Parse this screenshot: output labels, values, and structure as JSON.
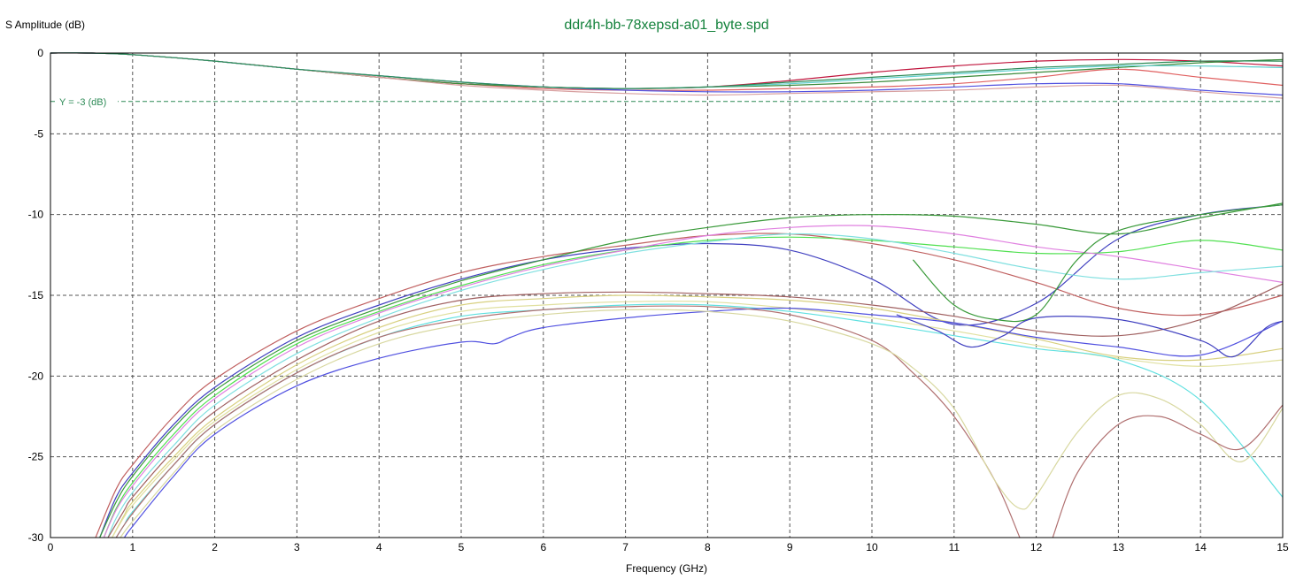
{
  "chart_data": {
    "type": "line",
    "title": "ddr4h-bb-78xepsd-a01_byte.spd",
    "xlabel": "Frequency (GHz)",
    "ylabel": "S Amplitude (dB)",
    "xlim": [
      0,
      15
    ],
    "ylim": [
      -30,
      0
    ],
    "xticks": [
      0,
      1,
      2,
      3,
      4,
      5,
      6,
      7,
      8,
      9,
      10,
      11,
      12,
      13,
      14,
      15
    ],
    "yticks": [
      0,
      -5,
      -10,
      -15,
      -20,
      -25,
      -30
    ],
    "grid": true,
    "reference_line": {
      "y": -3,
      "label": "Y = -3 (dB)",
      "color": "#2e8b57"
    },
    "series": [
      {
        "color": "#c0143c",
        "x": [
          0,
          0.5,
          1,
          2,
          3,
          4,
          5,
          6,
          7,
          8,
          9,
          10,
          11,
          12,
          13,
          14,
          15
        ],
        "y": [
          0,
          0,
          -0.1,
          -0.5,
          -1,
          -1.5,
          -1.9,
          -2.1,
          -2.2,
          -2.1,
          -1.7,
          -1.2,
          -0.8,
          -0.5,
          -0.4,
          -0.5,
          -0.8
        ]
      },
      {
        "color": "#e06060",
        "x": [
          0,
          0.5,
          1,
          2,
          3,
          4,
          5,
          6,
          7,
          8,
          9,
          10,
          11,
          12,
          13,
          14,
          15
        ],
        "y": [
          0,
          0,
          -0.1,
          -0.5,
          -1,
          -1.5,
          -1.9,
          -2.2,
          -2.3,
          -2.3,
          -2.2,
          -2.1,
          -1.9,
          -1.5,
          -1.0,
          -1.5,
          -2.0
        ]
      },
      {
        "color": "#3a8a3a",
        "x": [
          0,
          0.5,
          1,
          2,
          3,
          4,
          5,
          6,
          7,
          8,
          9,
          10,
          11,
          12,
          13,
          14,
          15
        ],
        "y": [
          0,
          0,
          -0.1,
          -0.5,
          -1,
          -1.5,
          -1.9,
          -2.1,
          -2.2,
          -2.1,
          -2.0,
          -1.8,
          -1.5,
          -1.2,
          -0.9,
          -0.6,
          -0.4
        ]
      },
      {
        "color": "#5050e0",
        "x": [
          0,
          0.5,
          1,
          2,
          3,
          4,
          5,
          6,
          7,
          8,
          9,
          10,
          11,
          12,
          13,
          14,
          15
        ],
        "y": [
          0,
          0,
          -0.1,
          -0.5,
          -1,
          -1.4,
          -1.8,
          -2.1,
          -2.3,
          -2.4,
          -2.4,
          -2.3,
          -2.1,
          -1.9,
          -1.9,
          -2.3,
          -2.6
        ]
      },
      {
        "color": "#d8a0a0",
        "x": [
          0,
          0.5,
          1,
          2,
          3,
          4,
          5,
          6,
          7,
          8,
          9,
          10,
          11,
          12,
          13,
          14,
          15
        ],
        "y": [
          0,
          0,
          -0.1,
          -0.5,
          -1,
          -1.5,
          -2.0,
          -2.3,
          -2.5,
          -2.6,
          -2.5,
          -2.4,
          -2.3,
          -2.1,
          -2.0,
          -2.4,
          -2.8
        ]
      },
      {
        "color": "#60d0d0",
        "x": [
          0,
          0.5,
          1,
          2,
          3,
          4,
          5,
          6,
          7,
          8,
          9,
          10,
          11,
          12,
          13,
          14,
          15
        ],
        "y": [
          0,
          0,
          -0.1,
          -0.5,
          -1,
          -1.4,
          -1.8,
          -2.1,
          -2.2,
          -2.1,
          -1.9,
          -1.6,
          -1.3,
          -1.0,
          -0.8,
          -0.8,
          -0.9
        ]
      },
      {
        "color": "#2e8b57",
        "x": [
          0,
          0.5,
          1,
          2,
          3,
          4,
          5,
          6,
          7,
          8,
          9,
          10,
          11,
          12,
          13,
          14,
          15
        ],
        "y": [
          0,
          0,
          -0.1,
          -0.5,
          -1,
          -1.4,
          -1.8,
          -2.1,
          -2.2,
          -2.1,
          -1.8,
          -1.5,
          -1.2,
          -0.9,
          -0.7,
          -0.5,
          -0.5
        ]
      },
      {
        "color": "#c06060",
        "x": [
          0.55,
          0.8,
          1,
          1.5,
          2,
          3,
          4,
          5,
          6,
          7,
          8,
          9,
          10,
          11,
          12,
          13,
          14,
          15
        ],
        "y": [
          -30,
          -27,
          -25.5,
          -22.5,
          -20.2,
          -17.2,
          -15.2,
          -13.6,
          -12.6,
          -11.9,
          -11.3,
          -11.2,
          -11.8,
          -12.8,
          -14.2,
          -15.8,
          -16.2,
          -15.0
        ]
      },
      {
        "color": "#4040c0",
        "x": [
          0.6,
          0.8,
          1,
          1.5,
          2,
          3,
          4,
          5,
          6,
          7,
          8,
          9,
          10,
          11,
          12,
          13,
          14,
          15
        ],
        "y": [
          -30,
          -27.5,
          -26,
          -23,
          -20.7,
          -17.6,
          -15.6,
          -14.0,
          -12.8,
          -12.1,
          -11.8,
          -12.2,
          -14.0,
          -16.8,
          -15.5,
          -11.5,
          -10.0,
          -9.4
        ]
      },
      {
        "color": "#3a9a3a",
        "x": [
          0.6,
          0.8,
          1,
          1.5,
          2,
          3,
          4,
          5,
          6,
          7,
          8,
          9,
          10,
          11,
          12,
          13,
          14,
          15
        ],
        "y": [
          -30,
          -27.8,
          -26.2,
          -23.2,
          -20.9,
          -17.8,
          -15.8,
          -14.1,
          -12.8,
          -11.6,
          -10.8,
          -10.2,
          -10.0,
          -10.1,
          -10.6,
          -11.2,
          -10.2,
          -9.3
        ]
      },
      {
        "color": "#50e050",
        "x": [
          0.65,
          0.8,
          1,
          1.5,
          2,
          3,
          4,
          5,
          6,
          7,
          8,
          9,
          10,
          11,
          12,
          13,
          14,
          15
        ],
        "y": [
          -30,
          -28.2,
          -26.6,
          -23.6,
          -21.2,
          -18.0,
          -16.0,
          -14.4,
          -13.1,
          -12.2,
          -11.6,
          -11.4,
          -11.6,
          -12.0,
          -12.4,
          -12.3,
          -11.6,
          -12.2
        ]
      },
      {
        "color": "#e080e0",
        "x": [
          0.65,
          0.8,
          1,
          1.5,
          2,
          3,
          4,
          5,
          6,
          7,
          8,
          9,
          10,
          11,
          12,
          13,
          14,
          15
        ],
        "y": [
          -30,
          -28.3,
          -26.8,
          -23.8,
          -21.4,
          -18.2,
          -16.1,
          -14.5,
          -13.2,
          -12.2,
          -11.3,
          -10.8,
          -10.7,
          -11.2,
          -12.0,
          -12.6,
          -13.4,
          -14.2
        ]
      },
      {
        "color": "#80e0e0",
        "x": [
          0.7,
          0.8,
          1,
          1.5,
          2,
          3,
          4,
          5,
          6,
          7,
          8,
          9,
          10,
          11,
          12,
          13,
          14,
          15
        ],
        "y": [
          -30,
          -28.8,
          -27.2,
          -24.3,
          -21.8,
          -18.6,
          -16.4,
          -14.7,
          -13.4,
          -12.4,
          -11.7,
          -11.2,
          -11.5,
          -12.4,
          -13.4,
          -14.0,
          -13.6,
          -13.2
        ]
      },
      {
        "color": "#a06060",
        "x": [
          0.7,
          0.9,
          1,
          1.5,
          2,
          3,
          4,
          5,
          6,
          7,
          8,
          9,
          10,
          11,
          12,
          13,
          14,
          15
        ],
        "y": [
          -30,
          -28.3,
          -27.5,
          -24.6,
          -22.2,
          -19.0,
          -16.6,
          -15.3,
          -14.9,
          -14.8,
          -14.9,
          -15.1,
          -15.6,
          -16.3,
          -17.2,
          -17.5,
          -16.5,
          -14.3
        ]
      },
      {
        "color": "#d8d080",
        "x": [
          0.75,
          0.9,
          1,
          1.5,
          2,
          3,
          4,
          5,
          6,
          7,
          8,
          9,
          10,
          11,
          12,
          13,
          14,
          15
        ],
        "y": [
          -30,
          -28.6,
          -27.8,
          -25.0,
          -22.6,
          -19.3,
          -17.0,
          -15.6,
          -15.2,
          -15.0,
          -15.1,
          -15.3,
          -15.8,
          -16.7,
          -17.7,
          -18.8,
          -19.0,
          -18.3
        ]
      },
      {
        "color": "#e0e0a0",
        "x": [
          0.75,
          0.9,
          1,
          1.5,
          2,
          3,
          4,
          5,
          6,
          7,
          8,
          9,
          10,
          11,
          12,
          13,
          14,
          15
        ],
        "y": [
          -30,
          -28.7,
          -28.0,
          -25.2,
          -22.8,
          -19.6,
          -17.3,
          -16.0,
          -15.6,
          -15.4,
          -15.4,
          -15.8,
          -16.4,
          -17.2,
          -18.1,
          -18.9,
          -19.4,
          -19.0
        ]
      },
      {
        "color": "#60e0e0",
        "x": [
          0.8,
          0.9,
          1,
          1.5,
          2,
          3,
          4,
          5,
          6,
          7,
          8,
          9,
          10,
          11,
          12,
          13,
          14,
          15
        ],
        "y": [
          -30,
          -29.2,
          -28.4,
          -25.5,
          -23.0,
          -19.8,
          -17.6,
          -16.3,
          -15.9,
          -15.6,
          -15.6,
          -16.0,
          -16.7,
          -17.5,
          -18.3,
          -19.0,
          -21.5,
          -27.5
        ]
      },
      {
        "color": "#5050e0",
        "x": [
          0.9,
          1,
          1.5,
          2,
          3,
          4,
          5,
          5.4,
          5.6,
          6,
          7,
          8,
          9,
          10,
          11,
          12,
          13,
          14,
          15
        ],
        "y": [
          -30,
          -29.3,
          -26.2,
          -23.6,
          -20.6,
          -18.9,
          -17.9,
          -18.0,
          -17.6,
          -17.0,
          -16.4,
          -16.0,
          -15.8,
          -16.2,
          -16.7,
          -17.6,
          -18.2,
          -18.7,
          -16.6
        ]
      },
      {
        "color": "#b07070",
        "x": [
          0.8,
          1,
          1.5,
          2,
          3,
          4,
          5,
          6,
          7,
          8,
          9,
          10,
          10.5,
          11,
          11.5,
          11.8
        ],
        "y": [
          -30,
          -28.5,
          -25.5,
          -23.0,
          -19.8,
          -17.6,
          -16.5,
          -15.9,
          -15.7,
          -15.7,
          -16.2,
          -17.8,
          -19.8,
          -22.5,
          -26.5,
          -30
        ]
      },
      {
        "color": "#d8d8a0",
        "x": [
          0.85,
          1,
          1.5,
          2,
          3,
          4,
          5,
          6,
          7,
          8,
          9,
          10,
          10.5,
          11,
          11.5,
          11.8,
          12,
          12.5,
          13,
          13.5,
          14,
          14.5,
          15
        ],
        "y": [
          -30,
          -29,
          -26,
          -23.4,
          -20.2,
          -18.0,
          -16.8,
          -16.2,
          -15.9,
          -16.0,
          -16.6,
          -18.0,
          -19.5,
          -22.0,
          -26.5,
          -28.2,
          -27.4,
          -23.5,
          -21.2,
          -21.4,
          -23.0,
          -25.3,
          -22.0
        ]
      },
      {
        "color": "#b07070",
        "x": [
          12.2,
          12.5,
          13,
          13.5,
          14,
          14.5,
          15
        ],
        "y": [
          -30,
          -26,
          -23.0,
          -22.5,
          -23.6,
          -24.5,
          -21.8
        ]
      },
      {
        "color": "#3a9a3a",
        "x": [
          10.5,
          11,
          11.5,
          12,
          12.5,
          13,
          14,
          15
        ],
        "y": [
          -12.8,
          -15.6,
          -16.5,
          -16.2,
          -12.8,
          -11.0,
          -10.0,
          -9.4
        ]
      },
      {
        "color": "#4040c0",
        "x": [
          10.3,
          10.8,
          11.2,
          11.6,
          12,
          13,
          14,
          14.4,
          14.8,
          15
        ],
        "y": [
          -16.2,
          -17.2,
          -18.2,
          -17.5,
          -16.4,
          -16.5,
          -17.8,
          -18.8,
          -17.0,
          -16.6
        ]
      }
    ]
  }
}
